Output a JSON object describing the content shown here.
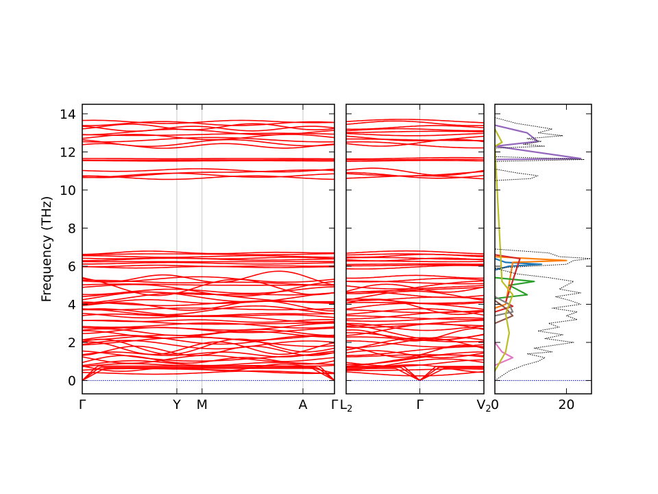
{
  "chart_data": {
    "type": "line",
    "ylabel": "Frequency (THz)",
    "ylim": [
      -0.7,
      14.5
    ],
    "yticks": [
      0,
      2,
      4,
      6,
      8,
      10,
      12,
      14
    ],
    "panels": [
      {
        "name": "band-path-1",
        "xlim": [
          0,
          4
        ],
        "ticks": [
          {
            "label": "Γ",
            "x": 0
          },
          {
            "label": "Y",
            "x": 1.5
          },
          {
            "label": "M",
            "x": 1.9
          },
          {
            "label": "A",
            "x": 3.5
          },
          {
            "label": "Γ",
            "x": 4
          }
        ]
      },
      {
        "name": "band-path-2",
        "xlim": [
          0,
          2
        ],
        "ticks": [
          {
            "label": "L2",
            "x": 0
          },
          {
            "label": "Γ",
            "x": 1.07
          },
          {
            "label": "V2",
            "x": 2
          }
        ]
      },
      {
        "name": "dos",
        "xlim": [
          0,
          27
        ],
        "ticks": [
          {
            "label": "0",
            "x": 0
          },
          {
            "label": "20",
            "x": 20
          }
        ]
      }
    ],
    "band_color": "#ff0000",
    "zero_line_color": "#0000cc",
    "band_groups": {
      "low_band_range": [
        0.0,
        5.5
      ],
      "mid_band_range": [
        5.9,
        6.8
      ],
      "high_band_range_1": [
        10.6,
        11.1
      ],
      "high_band_range_2": [
        11.5,
        11.7
      ],
      "high_band_range_3": [
        12.3,
        13.7
      ]
    },
    "dos_total": {
      "name": "total",
      "color": "#000000",
      "frequency": [
        0.0,
        0.5,
        0.8,
        1.0,
        1.2,
        1.4,
        1.5,
        1.7,
        2.0,
        2.2,
        2.4,
        2.6,
        2.8,
        3.0,
        3.2,
        3.4,
        3.6,
        3.8,
        4.0,
        4.2,
        4.4,
        4.6,
        4.8,
        5.0,
        5.2,
        5.4,
        5.6,
        5.9,
        6.1,
        6.3,
        6.4,
        6.5,
        6.7,
        6.9,
        10.5,
        10.6,
        10.75,
        10.9,
        11.1,
        11.5,
        11.6,
        11.65,
        11.75,
        12.2,
        12.3,
        12.4,
        12.55,
        12.7,
        12.85,
        13.0,
        13.2,
        13.35,
        13.5,
        13.8
      ],
      "dos": [
        0,
        4,
        8,
        12,
        14,
        9,
        16,
        11,
        22,
        14,
        19,
        12,
        18,
        15,
        23,
        20,
        23,
        16,
        24,
        21,
        17,
        24,
        18,
        20,
        22,
        15,
        6,
        0,
        20,
        22,
        27,
        18,
        15,
        0,
        0,
        10,
        12,
        6,
        0,
        0,
        25,
        18,
        0,
        0,
        14,
        8,
        13,
        9,
        19,
        12,
        16,
        11,
        6,
        0
      ]
    },
    "dos_projected": [
      {
        "color": "#1f77b4",
        "frequency": [
          5.8,
          6.0,
          6.1,
          6.2,
          6.4
        ],
        "dos": [
          0,
          4,
          13,
          3,
          0
        ]
      },
      {
        "color": "#ff7f0e",
        "frequency": [
          3.8,
          4.0,
          6.2,
          6.3,
          6.5
        ],
        "dos": [
          0,
          3,
          5,
          20,
          0
        ]
      },
      {
        "color": "#2ca02c",
        "frequency": [
          4.3,
          4.5,
          5.0,
          5.2,
          5.4
        ],
        "dos": [
          0,
          9,
          4,
          11,
          0
        ]
      },
      {
        "color": "#d62728",
        "frequency": [
          3.6,
          3.9,
          4.1,
          6.4,
          6.6
        ],
        "dos": [
          0,
          5,
          3,
          7,
          0
        ]
      },
      {
        "color": "#9467bd",
        "frequency": [
          10.6,
          11.6,
          11.65,
          12.3,
          12.55,
          13.0,
          13.4
        ],
        "dos": [
          0,
          0,
          24,
          0,
          12,
          9,
          0
        ]
      },
      {
        "color": "#8c564b",
        "frequency": [
          3.0,
          3.4,
          3.8,
          4.2
        ],
        "dos": [
          0,
          5,
          3,
          0
        ]
      },
      {
        "color": "#e377c2",
        "frequency": [
          0.8,
          1.2,
          1.5,
          2.0
        ],
        "dos": [
          0,
          5,
          2,
          0
        ]
      },
      {
        "color": "#7f7f7f",
        "frequency": [
          3.4,
          3.6,
          4.0,
          4.4
        ],
        "dos": [
          0,
          5,
          4,
          0
        ]
      },
      {
        "color": "#bcbd22",
        "frequency": [
          0.5,
          1.5,
          2.5,
          3.5,
          4.5,
          5.2,
          12.3,
          12.5,
          13.2
        ],
        "dos": [
          0,
          3,
          4,
          3,
          5,
          2,
          0,
          2,
          0
        ]
      }
    ]
  }
}
